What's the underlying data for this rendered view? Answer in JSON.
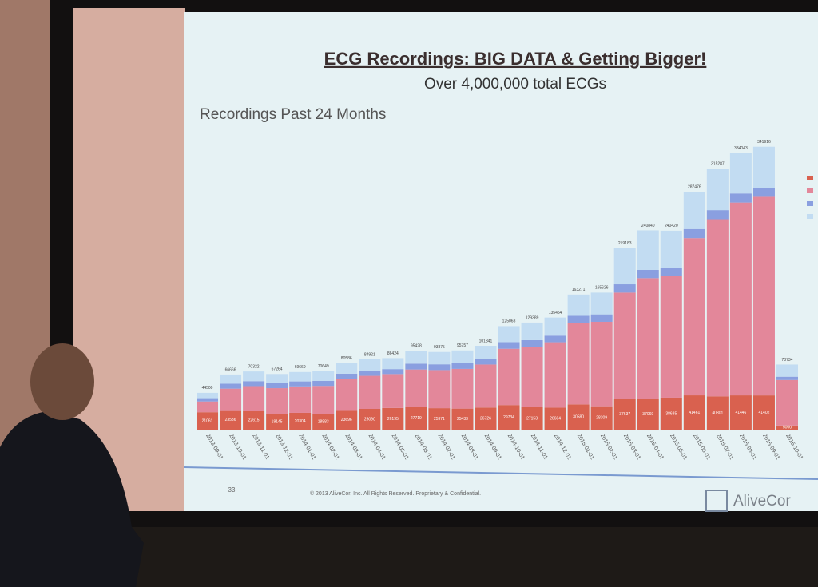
{
  "slide": {
    "number": "33",
    "footer": "© 2013 AliveCor, Inc.  All Rights Reserved.  Proprietary & Confidential.",
    "logo": "AliveCor"
  },
  "chart_data": {
    "type": "stacked_bar",
    "title": "ECG Recordings: BIG DATA & Getting Bigger!",
    "subtitle": "Over 4,000,000 total ECGs",
    "chart_title": "Recordings Past 24 Months",
    "categories": [
      "2013-09-01",
      "2013-10-01",
      "2013-11-01",
      "2013-12-01",
      "2014-01-01",
      "2014-02-01",
      "2014-03-01",
      "2014-04-01",
      "2014-05-01",
      "2014-06-01",
      "2014-07-01",
      "2014-08-01",
      "2014-09-01",
      "2014-10-01",
      "2014-11-01",
      "2014-12-01",
      "2015-01-01",
      "2015-02-01",
      "2015-03-01",
      "2015-04-01",
      "2015-05-01",
      "2015-06-01",
      "2015-07-01",
      "2015-08-01",
      "2015-09-01",
      "2015-10-01"
    ],
    "series": [
      {
        "color": "#d9614f",
        "values": [
          21061,
          23536,
          22615,
          19145,
          20304,
          18883,
          23696,
          25090,
          26195,
          27719,
          25971,
          25433,
          26726,
          29734,
          27153,
          26604,
          30580,
          28309,
          37637,
          37069,
          38635,
          41461,
          40301,
          41446,
          41402,
          5000
        ]
      },
      {
        "color": "#e3879a",
        "values": [
          13000,
          26000,
          30000,
          31000,
          32000,
          34000,
          38000,
          40000,
          41000,
          45000,
          46000,
          48000,
          52000,
          68000,
          73000,
          79000,
          98000,
          102000,
          128000,
          146000,
          147000,
          190000,
          214000,
          233000,
          240000,
          55000
        ]
      },
      {
        "color": "#8a9fe0",
        "values": [
          4000,
          6000,
          6000,
          6000,
          6000,
          6000,
          6000,
          6000,
          6000,
          7000,
          7000,
          7000,
          7000,
          8000,
          8000,
          8000,
          9000,
          9000,
          10000,
          10000,
          10000,
          11000,
          11000,
          11000,
          11000,
          4000
        ]
      },
      {
        "color": "#c2dcf2",
        "values": [
          6439,
          11130,
          11707,
          11119,
          11365,
          11766,
          12890,
          13831,
          13229,
          15709,
          14904,
          15324,
          15615,
          19334,
          21236,
          21850,
          25691,
          26317,
          43546,
          47771,
          44785,
          45015,
          49986,
          48597,
          49514,
          14734
        ]
      }
    ],
    "totals": [
      44500,
      66666,
      70322,
      67264,
      69669,
      70649,
      80586,
      84921,
      86424,
      95428,
      93875,
      95757,
      101341,
      125068,
      129389,
      135454,
      163271,
      165626,
      219183,
      240840,
      240420,
      287476,
      315287,
      334043,
      341916,
      78734
    ],
    "ylim": [
      0,
      360000
    ]
  }
}
